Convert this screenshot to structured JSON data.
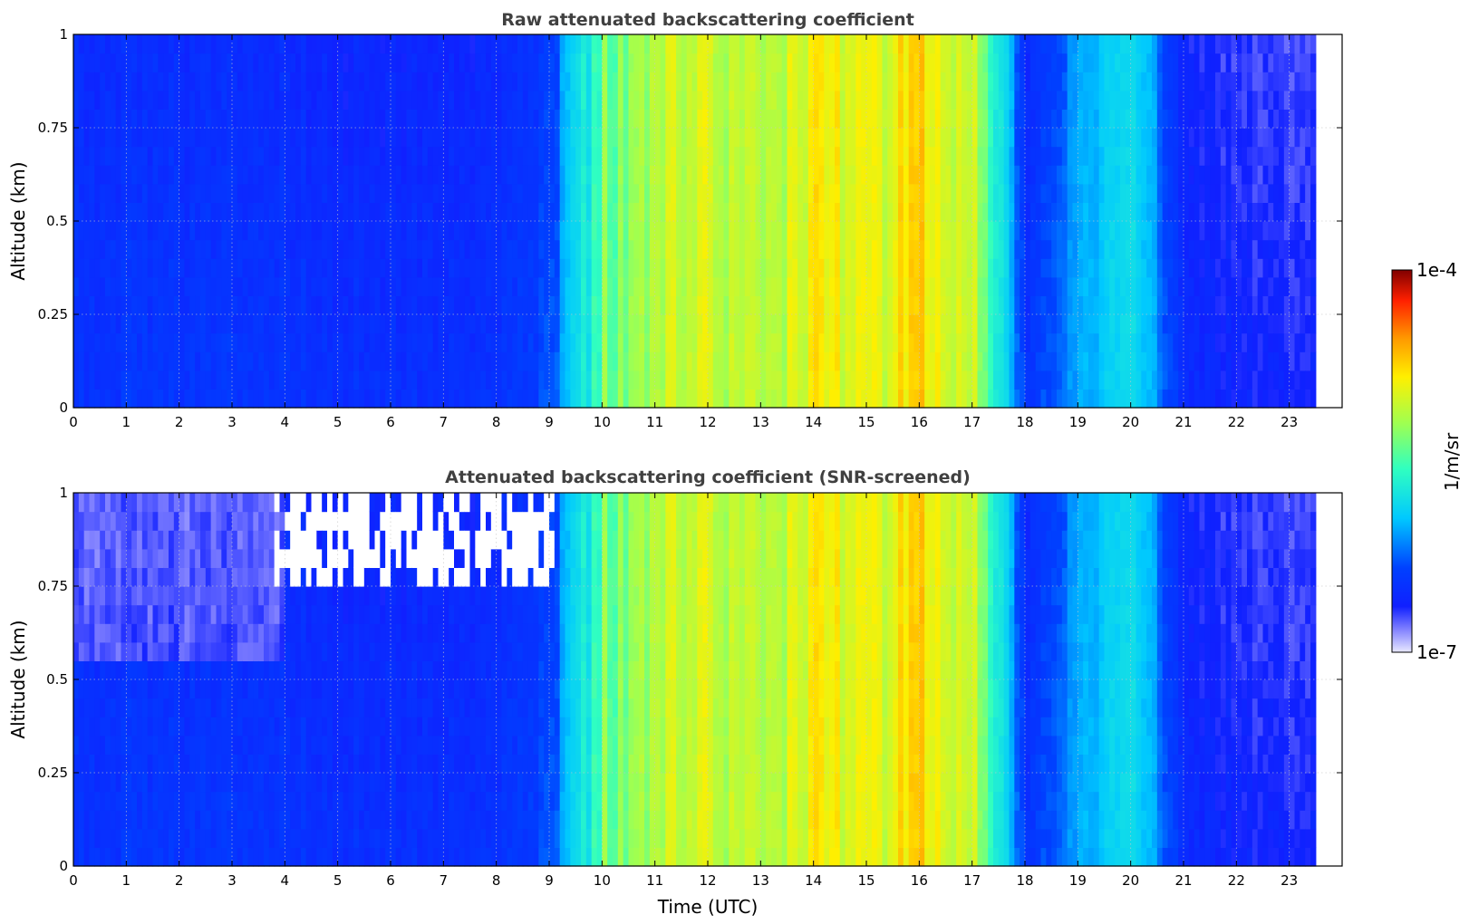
{
  "figure": {
    "panel_top_title": "Raw attenuated backscattering coefficient",
    "panel_bottom_title": "Attenuated backscattering coefficient (SNR-screened)",
    "xlabel": "Time (UTC)",
    "ylabel": "Altitude (km)",
    "colorbar_label": "1/m/sr",
    "colorbar_top": "1e-4",
    "colorbar_bottom": "1e-7"
  },
  "chart_data": [
    {
      "type": "heatmap",
      "title": "Raw attenuated backscattering coefficient",
      "xlabel": "",
      "ylabel": "Altitude (km)",
      "xlim": [
        0,
        24
      ],
      "ylim": [
        0,
        1
      ],
      "x_ticks": [
        0,
        1,
        2,
        3,
        4,
        5,
        6,
        7,
        8,
        9,
        10,
        11,
        12,
        13,
        14,
        15,
        16,
        17,
        18,
        19,
        20,
        21,
        22,
        23
      ],
      "y_ticks": [
        0,
        0.25,
        0.5,
        0.75,
        1
      ],
      "y_tick_labels": [
        "0",
        "0.25",
        "0.5",
        "0.75",
        "1"
      ],
      "grid": true,
      "data_end_time": 23.5,
      "colorscale": "jet, log10",
      "value_range": [
        "1e-7",
        "1e-4"
      ],
      "column_level_by_hour": [
        0.2,
        0.21,
        0.21,
        0.21,
        0.2,
        0.19,
        0.19,
        0.19,
        0.19,
        0.25,
        0.55,
        0.62,
        0.66,
        0.63,
        0.7,
        0.68,
        0.72,
        0.64,
        0.2,
        0.32,
        0.4,
        0.18,
        0.15,
        0.15
      ],
      "screened": false
    },
    {
      "type": "heatmap",
      "title": "Attenuated backscattering coefficient (SNR-screened)",
      "xlabel": "Time (UTC)",
      "ylabel": "Altitude (km)",
      "xlim": [
        0,
        24
      ],
      "ylim": [
        0,
        1
      ],
      "x_ticks": [
        0,
        1,
        2,
        3,
        4,
        5,
        6,
        7,
        8,
        9,
        10,
        11,
        12,
        13,
        14,
        15,
        16,
        17,
        18,
        19,
        20,
        21,
        22,
        23
      ],
      "y_ticks": [
        0,
        0.25,
        0.5,
        0.75,
        1
      ],
      "y_tick_labels": [
        "0",
        "0.25",
        "0.5",
        "0.75",
        "1"
      ],
      "grid": true,
      "data_end_time": 23.5,
      "colorscale": "jet, log10",
      "value_range": [
        "1e-7",
        "1e-4"
      ],
      "column_level_by_hour": [
        0.2,
        0.21,
        0.21,
        0.21,
        0.2,
        0.19,
        0.19,
        0.19,
        0.19,
        0.25,
        0.55,
        0.62,
        0.66,
        0.63,
        0.7,
        0.68,
        0.72,
        0.64,
        0.2,
        0.32,
        0.4,
        0.18,
        0.15,
        0.15
      ],
      "screened": true,
      "screened_region": {
        "x": [
          3.8,
          9.0
        ],
        "y": [
          0.75,
          1.0
        ]
      }
    }
  ]
}
